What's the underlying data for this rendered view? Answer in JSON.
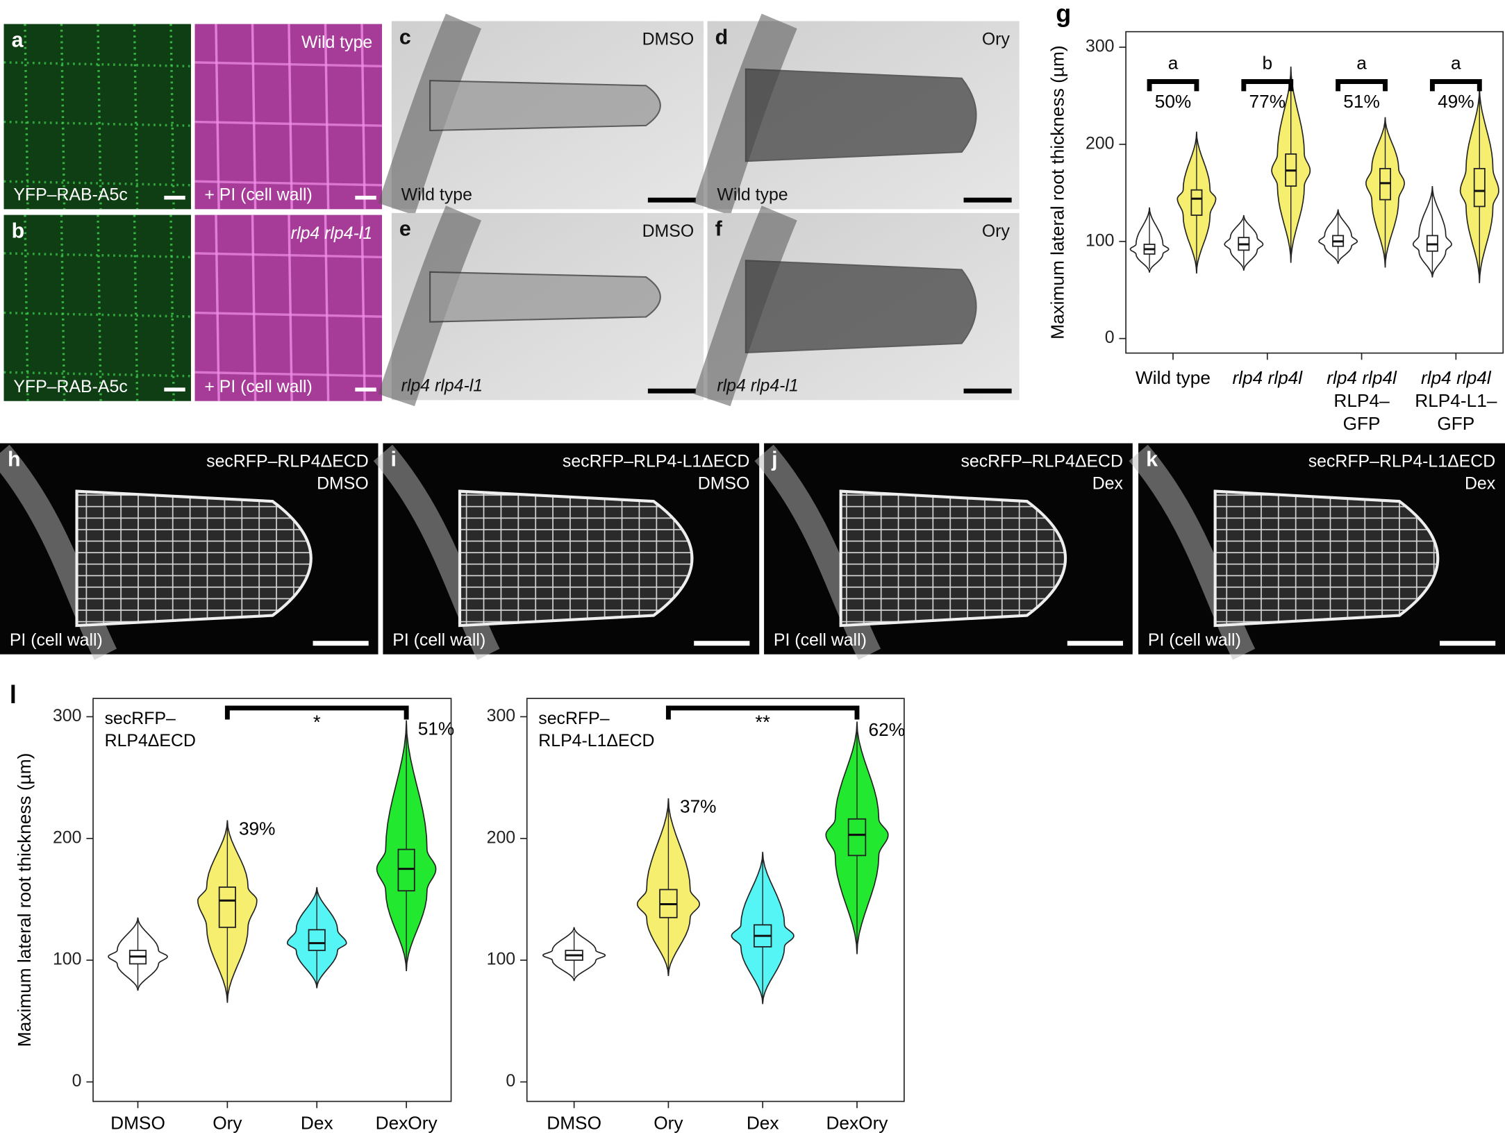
{
  "panels": [
    {
      "letter": "a",
      "bottom_left": "YFP–RAB-A5c"
    },
    {
      "top_right": [
        "Wild type"
      ],
      "bottom_left": "+ PI (cell wall)"
    },
    {
      "letter": "b",
      "bottom_left": "YFP–RAB-A5c"
    },
    {
      "top_right": [
        "rlp4 rlp4-l1"
      ],
      "bottom_left": "+ PI (cell wall)",
      "italic": "top_right"
    },
    {
      "letter": "c",
      "top_right": [
        "DMSO"
      ],
      "bottom_left": "Wild type"
    },
    {
      "letter": "d",
      "top_right": [
        "Ory"
      ],
      "bottom_left": "Wild type"
    },
    {
      "letter": "e",
      "top_right": [
        "DMSO"
      ],
      "bottom_left": "rlp4 rlp4-l1",
      "italic": "bottom_left"
    },
    {
      "letter": "f",
      "top_right": [
        "Ory"
      ],
      "bottom_left": "rlp4 rlp4-l1",
      "italic": "bottom_left"
    },
    {
      "letter": "h",
      "top_right": [
        "secRFP–RLP4ΔECD",
        "DMSO"
      ],
      "bottom_left": "PI (cell wall)"
    },
    {
      "letter": "i",
      "top_right": [
        "secRFP–RLP4-L1ΔECD",
        "DMSO"
      ],
      "bottom_left": "PI (cell wall)"
    },
    {
      "letter": "j",
      "top_right": [
        "secRFP–RLP4ΔECD",
        "Dex"
      ],
      "bottom_left": "PI (cell wall)"
    },
    {
      "letter": "k",
      "top_right": [
        "secRFP–RLP4-L1ΔECD",
        "Dex"
      ],
      "bottom_left": "PI (cell wall)"
    }
  ],
  "chart_data": [
    {
      "type": "violin",
      "panel_letter": "g",
      "ylabel": "Maximum lateral root thickness (µm)",
      "categories": [
        [
          "Wild type"
        ],
        [
          "rlp4 rlp4l"
        ],
        [
          "rlp4 rlp4l",
          "RLP4–",
          "GFP"
        ],
        [
          "rlp4 rlp4l",
          "RLP4-L1–",
          "GFP"
        ]
      ],
      "category_first_line_italic": [
        false,
        true,
        true,
        true
      ],
      "series": [
        {
          "color": "#ffffff",
          "min": [
            68,
            70,
            77,
            63
          ],
          "q1": [
            87,
            91,
            95,
            90
          ],
          "median": [
            92,
            97,
            100,
            97
          ],
          "q3": [
            97,
            104,
            106,
            106
          ],
          "max": [
            135,
            127,
            133,
            157
          ]
        },
        {
          "color": "#f5ee6e",
          "min": [
            67,
            78,
            73,
            57
          ],
          "q1": [
            127,
            157,
            143,
            136
          ],
          "median": [
            144,
            173,
            160,
            152
          ],
          "q3": [
            153,
            190,
            175,
            175
          ],
          "max": [
            213,
            280,
            228,
            258
          ]
        }
      ],
      "group_letters": [
        "a",
        "b",
        "a",
        "a"
      ],
      "percent_labels": [
        "50%",
        "77%",
        "51%",
        "49%"
      ],
      "ylim": [
        -15,
        316
      ],
      "yticks": [
        0,
        100,
        200,
        300
      ]
    },
    {
      "type": "violin",
      "panel_letter": "l",
      "ylabel": "Maximum lateral root thickness (µm)",
      "annotation": [
        "secRFP–",
        "RLP4ΔECD"
      ],
      "categories": [
        "DMSO",
        "Ory",
        "Dex",
        "DexOry"
      ],
      "colors": [
        "#ffffff",
        "#f5ee6e",
        "#55f5f5",
        "#22e830"
      ],
      "min": [
        75,
        65,
        77,
        91
      ],
      "q1": [
        97,
        127,
        108,
        157
      ],
      "median": [
        103,
        149,
        114,
        175
      ],
      "q3": [
        108,
        160,
        125,
        191
      ],
      "max": [
        135,
        215,
        160,
        297
      ],
      "percent_labels": [
        null,
        "39%",
        null,
        "51%"
      ],
      "significance": "*",
      "ylim": [
        -16,
        315
      ],
      "yticks": [
        0,
        100,
        200,
        300
      ]
    },
    {
      "type": "violin",
      "annotation": [
        "secRFP–",
        "RLP4-L1ΔECD"
      ],
      "categories": [
        "DMSO",
        "Ory",
        "Dex",
        "DexOry"
      ],
      "colors": [
        "#ffffff",
        "#f5ee6e",
        "#55f5f5",
        "#22e830"
      ],
      "min": [
        83,
        87,
        64,
        105
      ],
      "q1": [
        100,
        135,
        111,
        186
      ],
      "median": [
        104,
        146,
        120,
        203
      ],
      "q3": [
        108,
        158,
        129,
        216
      ],
      "max": [
        127,
        233,
        189,
        296
      ],
      "percent_labels": [
        null,
        "37%",
        null,
        "62%"
      ],
      "significance": "**",
      "ylim": [
        -16,
        315
      ],
      "yticks": [
        0,
        100,
        200,
        300
      ]
    }
  ]
}
